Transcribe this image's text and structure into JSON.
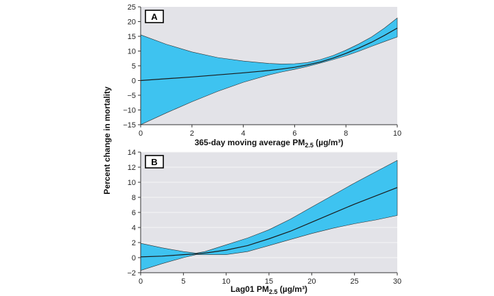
{
  "chart_data": [
    {
      "type": "line",
      "panel_label": "A",
      "xlabel_main": "365-day moving average PM",
      "xlabel_sub": "2.5",
      "xlabel_unit": " (µg/m³)",
      "ylabel": "Percent change in mortality",
      "xlim": [
        0,
        10
      ],
      "ylim": [
        -15,
        25
      ],
      "xticks": [
        0,
        2,
        4,
        6,
        8,
        10
      ],
      "yticks": [
        -15,
        -10,
        -5,
        0,
        5,
        10,
        15,
        20,
        25
      ],
      "grid": false,
      "band_color": "#3ec3f0",
      "x": [
        0,
        1,
        2,
        3,
        4,
        5,
        5.5,
        6,
        6.5,
        7,
        7.5,
        8,
        8.5,
        9,
        9.5,
        10
      ],
      "estimate": [
        0,
        0.6,
        1.2,
        1.9,
        2.6,
        3.4,
        3.9,
        4.5,
        5.3,
        6.3,
        7.6,
        9.2,
        11.0,
        13.0,
        15.3,
        17.8
      ],
      "upper": [
        15.5,
        12.3,
        9.7,
        7.8,
        6.6,
        5.8,
        5.6,
        5.7,
        6.1,
        7.1,
        8.5,
        10.3,
        12.4,
        14.8,
        17.8,
        21.2
      ],
      "lower": [
        -15,
        -11.0,
        -7.2,
        -3.7,
        -0.6,
        1.9,
        2.9,
        3.8,
        4.8,
        5.9,
        7.1,
        8.4,
        9.9,
        11.6,
        13.2,
        14.8
      ]
    },
    {
      "type": "line",
      "panel_label": "B",
      "xlabel_main": "Lag01 PM",
      "xlabel_sub": "2.5",
      "xlabel_unit": " (µg/m³)",
      "xlim": [
        0,
        30
      ],
      "ylim": [
        -2,
        14
      ],
      "xticks": [
        0,
        5,
        10,
        15,
        20,
        25,
        30
      ],
      "yticks": [
        -2,
        0,
        2,
        4,
        6,
        8,
        10,
        12,
        14
      ],
      "grid": true,
      "band_color": "#3ec3f0",
      "x": [
        0,
        2.5,
        5,
        6.5,
        7.5,
        10,
        12.5,
        15,
        17.5,
        20,
        22.5,
        25,
        27.5,
        30
      ],
      "estimate": [
        0.1,
        0.2,
        0.4,
        0.5,
        0.6,
        1.0,
        1.6,
        2.5,
        3.5,
        4.7,
        5.9,
        7.1,
        8.2,
        9.3
      ],
      "upper": [
        1.9,
        1.3,
        0.8,
        0.6,
        0.8,
        1.7,
        2.6,
        3.7,
        5.1,
        6.7,
        8.3,
        9.9,
        11.4,
        12.9
      ],
      "lower": [
        -1.7,
        -0.8,
        0.0,
        0.4,
        0.4,
        0.4,
        0.8,
        1.6,
        2.4,
        3.2,
        3.9,
        4.5,
        5.0,
        5.6
      ]
    }
  ]
}
